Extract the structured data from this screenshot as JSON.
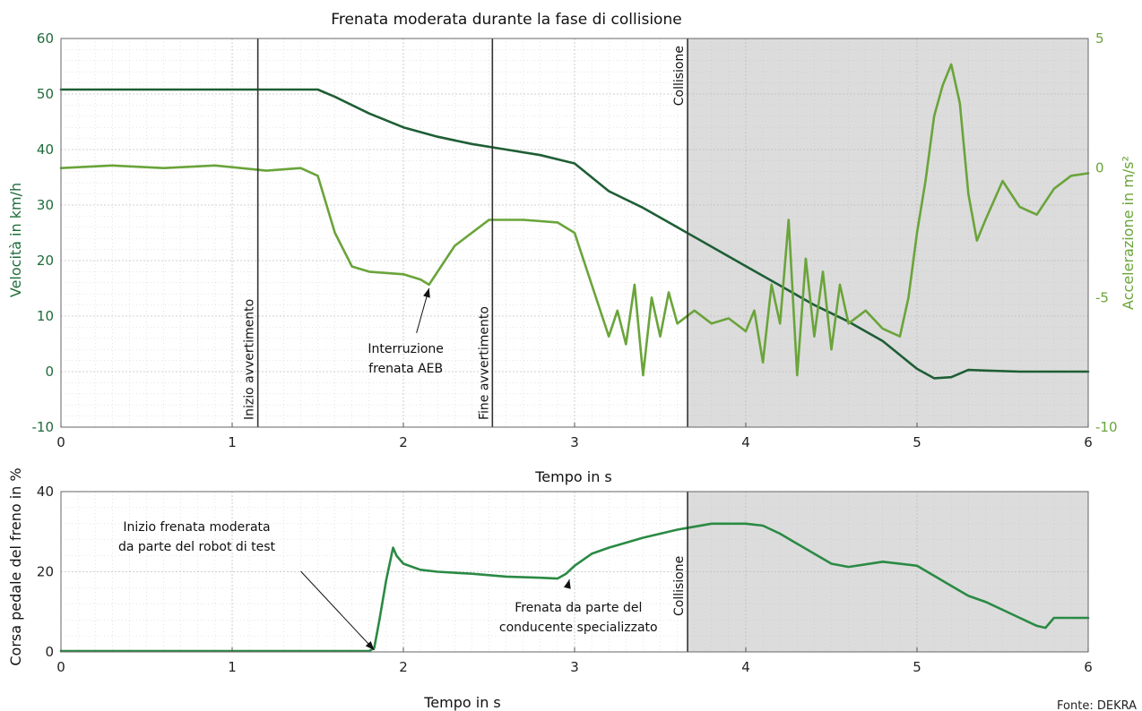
{
  "source": "Fonte: DEKRA",
  "colors": {
    "speed": "#1e5e35",
    "accel": "#6aa43a",
    "pedal": "#2a8a44",
    "shade": "#dcdcdc",
    "marker": "#333333",
    "grid": "#b9b9b9"
  },
  "chart_data": [
    {
      "type": "line",
      "title": "Frenata moderata durante la fase di collisione",
      "xlabel": "Tempo in s",
      "ylabel": "Velocità in km/h",
      "ylabel_right": "Accelerazione in m/s²",
      "xlim": [
        0,
        6
      ],
      "ylim": [
        -10,
        60
      ],
      "ylim_right": [
        -10,
        5
      ],
      "x_ticks": [
        "0",
        "1",
        "2",
        "3",
        "4",
        "5",
        "6"
      ],
      "y_ticks": [
        "-10",
        "0",
        "10",
        "20",
        "30",
        "40",
        "50",
        "60"
      ],
      "y_ticks_right": [
        "-10",
        "-5",
        "0",
        "5"
      ],
      "grid": true,
      "shaded_region": [
        3.66,
        6
      ],
      "markers": [
        {
          "x": 1.15,
          "label": "Inizio avvertimento"
        },
        {
          "x": 2.52,
          "label": "Fine avvertimento"
        },
        {
          "x": 3.66,
          "label": "Collisione"
        }
      ],
      "annotations": [
        {
          "lines": [
            "Interruzione",
            "frenata AEB"
          ],
          "x": 2.15,
          "y": -4.5,
          "axis": "right"
        }
      ],
      "series": [
        {
          "axis": "left",
          "x": [
            0,
            0.5,
            1.0,
            1.5,
            1.6,
            1.8,
            2.0,
            2.2,
            2.4,
            2.6,
            2.8,
            3.0,
            3.1,
            3.2,
            3.4,
            3.6,
            3.8,
            4.0,
            4.2,
            4.4,
            4.6,
            4.8,
            4.9,
            5.0,
            5.1,
            5.2,
            5.3,
            5.4,
            5.6,
            5.8,
            6.0
          ],
          "values": [
            50.8,
            50.8,
            50.8,
            50.8,
            49.5,
            46.5,
            44.0,
            42.3,
            41.0,
            40.0,
            39.0,
            37.5,
            35.0,
            32.5,
            29.5,
            26.0,
            22.5,
            19.0,
            15.5,
            12.0,
            9.0,
            5.5,
            3.0,
            0.5,
            -1.2,
            -1.0,
            0.3,
            0.2,
            0.0,
            0.0,
            0.0
          ]
        },
        {
          "axis": "right",
          "x": [
            0,
            0.3,
            0.6,
            0.9,
            1.2,
            1.4,
            1.5,
            1.6,
            1.7,
            1.8,
            2.0,
            2.1,
            2.15,
            2.3,
            2.5,
            2.7,
            2.9,
            3.0,
            3.1,
            3.2,
            3.25,
            3.3,
            3.35,
            3.4,
            3.45,
            3.5,
            3.55,
            3.6,
            3.7,
            3.8,
            3.9,
            4.0,
            4.05,
            4.1,
            4.15,
            4.2,
            4.25,
            4.3,
            4.35,
            4.4,
            4.45,
            4.5,
            4.55,
            4.6,
            4.7,
            4.8,
            4.9,
            4.95,
            5.0,
            5.05,
            5.1,
            5.15,
            5.2,
            5.25,
            5.3,
            5.35,
            5.4,
            5.5,
            5.6,
            5.7,
            5.8,
            5.9,
            6.0
          ],
          "values": [
            0.0,
            0.1,
            0.0,
            0.1,
            -0.1,
            0.0,
            -0.3,
            -2.5,
            -3.8,
            -4.0,
            -4.1,
            -4.3,
            -4.5,
            -3.0,
            -2.0,
            -2.0,
            -2.1,
            -2.5,
            -4.5,
            -6.5,
            -5.5,
            -6.8,
            -4.5,
            -8.0,
            -5.0,
            -6.5,
            -4.8,
            -6.0,
            -5.5,
            -6.0,
            -5.8,
            -6.3,
            -5.5,
            -7.5,
            -4.5,
            -6.0,
            -2.0,
            -8.0,
            -3.5,
            -6.5,
            -4.0,
            -7.0,
            -4.5,
            -6.0,
            -5.5,
            -6.2,
            -6.5,
            -5.0,
            -2.5,
            -0.5,
            2.0,
            3.2,
            4.0,
            2.5,
            -1.0,
            -2.8,
            -2.0,
            -0.5,
            -1.5,
            -1.8,
            -0.8,
            -0.3,
            -0.2
          ]
        }
      ]
    },
    {
      "type": "line",
      "xlabel": "Tempo in s",
      "ylabel": "Corsa pedale del freno in %",
      "xlim": [
        0,
        6
      ],
      "ylim": [
        0,
        40
      ],
      "x_ticks": [
        "0",
        "1",
        "2",
        "3",
        "4",
        "5",
        "6"
      ],
      "y_ticks": [
        "0",
        "20",
        "40"
      ],
      "grid": true,
      "shaded_region": [
        3.66,
        6
      ],
      "markers": [
        {
          "x": 3.66,
          "label": "Collisione"
        }
      ],
      "annotations": [
        {
          "lines": [
            "Inizio frenata moderata",
            "da parte del robot di test"
          ],
          "x": 1.83,
          "y": 0
        },
        {
          "lines": [
            "Frenata da parte del",
            "conducente specializzato"
          ],
          "x": 2.97,
          "y": 19
        }
      ],
      "series": [
        {
          "x": [
            0,
            0.5,
            1.0,
            1.5,
            1.8,
            1.83,
            1.86,
            1.9,
            1.94,
            1.96,
            2.0,
            2.1,
            2.2,
            2.4,
            2.6,
            2.8,
            2.9,
            2.95,
            3.0,
            3.1,
            3.2,
            3.4,
            3.6,
            3.8,
            4.0,
            4.1,
            4.2,
            4.3,
            4.4,
            4.5,
            4.6,
            4.8,
            5.0,
            5.1,
            5.2,
            5.3,
            5.4,
            5.5,
            5.6,
            5.7,
            5.75,
            5.8,
            6.0
          ],
          "values": [
            0.2,
            0.2,
            0.2,
            0.2,
            0.2,
            1.0,
            8.0,
            18.0,
            26.0,
            24.0,
            22.0,
            20.5,
            20.0,
            19.5,
            18.8,
            18.5,
            18.3,
            19.5,
            21.5,
            24.5,
            26.0,
            28.5,
            30.5,
            32.0,
            32.0,
            31.5,
            29.5,
            27.0,
            24.5,
            22.0,
            21.2,
            22.5,
            21.5,
            19.0,
            16.5,
            14.0,
            12.5,
            10.5,
            8.5,
            6.5,
            6.0,
            8.5,
            8.5
          ]
        }
      ]
    }
  ]
}
